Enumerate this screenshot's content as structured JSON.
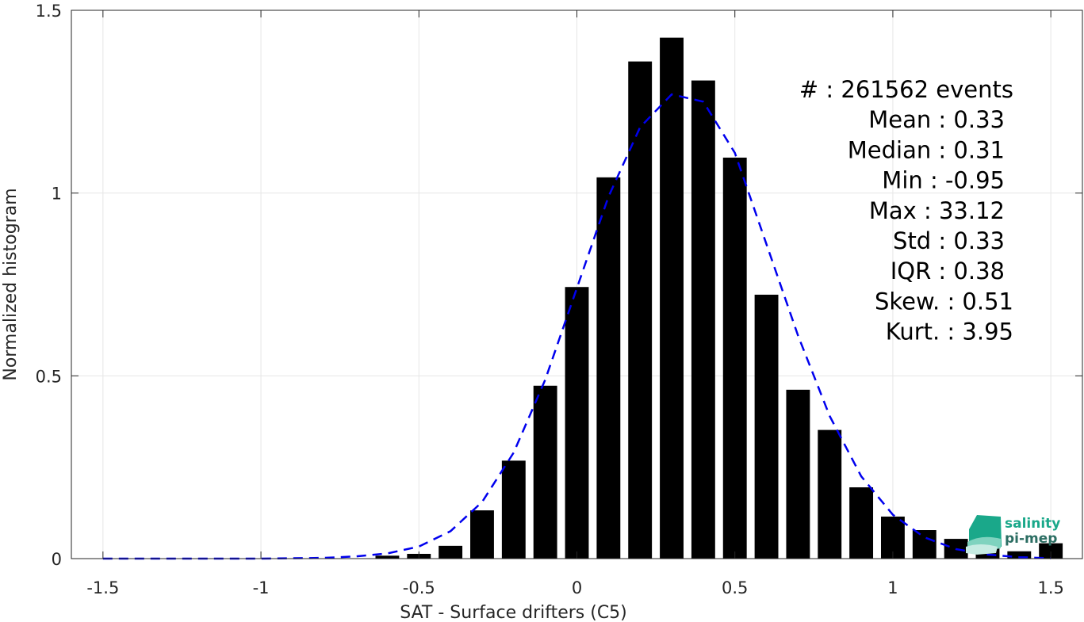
{
  "chart_data": {
    "type": "bar",
    "xlabel": "SAT - Surface drifters (C5)",
    "ylabel": "Normalized histogram",
    "xlim": [
      -1.6,
      1.6
    ],
    "ylim": [
      0,
      1.5
    ],
    "xticks": [
      -1.5,
      -1,
      -0.5,
      0,
      0.5,
      1,
      1.5
    ],
    "xtick_labels": [
      "-1.5",
      "-1",
      "-0.5",
      "0",
      "0.5",
      "1",
      "1.5"
    ],
    "yticks": [
      0,
      0.5,
      1,
      1.5
    ],
    "ytick_labels": [
      "0",
      "0.5",
      "1",
      "1.5"
    ],
    "grid": true,
    "bar_centers": [
      -1.5,
      -1.4,
      -1.3,
      -1.2,
      -1.1,
      -1.0,
      -0.9,
      -0.8,
      -0.7,
      -0.6,
      -0.5,
      -0.4,
      -0.3,
      -0.2,
      -0.1,
      0.0,
      0.1,
      0.2,
      0.3,
      0.4,
      0.5,
      0.6,
      0.7,
      0.8,
      0.9,
      1.0,
      1.1,
      1.2,
      1.3,
      1.4,
      1.5
    ],
    "bar_values": [
      0,
      0,
      0,
      0,
      0,
      0,
      0,
      0,
      0.001,
      0.008,
      0.013,
      0.035,
      0.132,
      0.268,
      0.473,
      0.743,
      1.043,
      1.36,
      1.425,
      1.308,
      1.097,
      0.722,
      0.462,
      0.352,
      0.195,
      0.115,
      0.078,
      0.054,
      0.034,
      0.02,
      0.042
    ],
    "bar_color": "#000000",
    "fit_curve": {
      "style": "dashed",
      "color": "#0000EE",
      "x": [
        -1.5,
        -1.2,
        -1.0,
        -0.8,
        -0.7,
        -0.6,
        -0.5,
        -0.4,
        -0.3,
        -0.2,
        -0.1,
        0.0,
        0.1,
        0.2,
        0.3,
        0.4,
        0.5,
        0.6,
        0.7,
        0.8,
        0.9,
        1.0,
        1.1,
        1.2,
        1.3,
        1.4,
        1.5
      ],
      "y": [
        0,
        0,
        0,
        0.002,
        0.006,
        0.014,
        0.033,
        0.075,
        0.155,
        0.29,
        0.49,
        0.74,
        0.99,
        1.18,
        1.27,
        1.25,
        1.11,
        0.86,
        0.61,
        0.39,
        0.225,
        0.12,
        0.058,
        0.026,
        0.011,
        0.004,
        0.001
      ]
    },
    "stats": [
      {
        "label": "#  : 261562 events"
      },
      {
        "label": "Mean : 0.33"
      },
      {
        "label": "Median : 0.31"
      },
      {
        "label": "Min : -0.95"
      },
      {
        "label": "Max : 33.12"
      },
      {
        "label": "Std : 0.33"
      },
      {
        "label": "IQR : 0.38"
      },
      {
        "label": "Skew. : 0.51"
      },
      {
        "label": "Kurt. : 3.95"
      }
    ]
  },
  "logo": {
    "line1": "salinity",
    "line2": "pi-mep",
    "color1": "#1aa88a",
    "color2": "#2c6e63"
  }
}
